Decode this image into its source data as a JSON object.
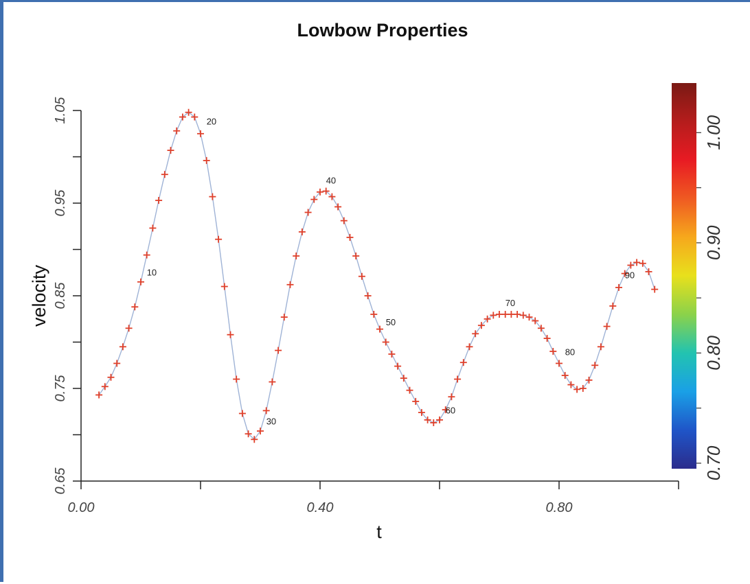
{
  "chart_data": {
    "type": "line",
    "title": "Lowbow Properties",
    "xlabel": "t",
    "ylabel": "velocity",
    "xlim": [
      0.0,
      1.0
    ],
    "ylim": [
      0.65,
      1.05
    ],
    "x_ticks": [
      0.0,
      0.2,
      0.4,
      0.6,
      0.8,
      1.0
    ],
    "x_tick_labels": [
      "0.00",
      "",
      "0.40",
      "",
      "0.80",
      ""
    ],
    "y_ticks": [
      0.65,
      0.7,
      0.75,
      0.8,
      0.85,
      0.9,
      0.95,
      1.0,
      1.05
    ],
    "y_tick_labels": [
      "0.65",
      "",
      "0.75",
      "",
      "0.85",
      "",
      "0.95",
      "",
      "1.05"
    ],
    "grid": false,
    "legend": "none",
    "line_color": "#9fb3d6",
    "marker_color": "#e0402a",
    "colorbar": {
      "range": [
        0.695,
        1.045
      ],
      "ticks": [
        0.7,
        0.75,
        0.8,
        0.85,
        0.9,
        0.95,
        1.0
      ],
      "tick_labels": [
        "0.70",
        "",
        "0.80",
        "",
        "0.90",
        "",
        "1.00"
      ],
      "colors": [
        "#2b2c8c",
        "#1f55c8",
        "#1aa0e6",
        "#22c3b0",
        "#8bd24a",
        "#e8e01c",
        "#f6a81c",
        "#ef5a22",
        "#e81b23",
        "#b51c1c",
        "#7a1a14"
      ]
    },
    "series": [
      {
        "x": [
          0.03,
          0.04,
          0.05,
          0.06,
          0.07,
          0.08,
          0.09,
          0.1,
          0.11,
          0.12,
          0.13,
          0.14,
          0.15,
          0.16,
          0.17,
          0.18,
          0.19,
          0.2,
          0.21,
          0.22,
          0.23,
          0.24,
          0.25,
          0.26,
          0.27,
          0.28,
          0.29,
          0.3,
          0.31,
          0.32,
          0.33,
          0.34,
          0.35,
          0.36,
          0.37,
          0.38,
          0.39,
          0.4,
          0.41,
          0.42,
          0.43,
          0.44,
          0.45,
          0.46,
          0.47,
          0.48,
          0.49,
          0.5,
          0.51,
          0.52,
          0.53,
          0.54,
          0.55,
          0.56,
          0.57,
          0.58,
          0.59,
          0.6,
          0.61,
          0.62,
          0.63,
          0.64,
          0.65,
          0.66,
          0.67,
          0.68,
          0.69,
          0.7,
          0.71,
          0.72,
          0.73,
          0.74,
          0.75,
          0.76,
          0.77,
          0.78,
          0.79,
          0.8,
          0.81,
          0.82,
          0.83,
          0.84,
          0.85,
          0.86,
          0.87,
          0.88,
          0.89,
          0.9,
          0.91,
          0.92,
          0.93,
          0.94,
          0.95,
          0.96
        ],
        "y": [
          0.743,
          0.752,
          0.762,
          0.777,
          0.795,
          0.815,
          0.838,
          0.865,
          0.894,
          0.923,
          0.953,
          0.981,
          1.007,
          1.028,
          1.043,
          1.048,
          1.043,
          1.025,
          0.996,
          0.957,
          0.911,
          0.86,
          0.808,
          0.76,
          0.723,
          0.701,
          0.695,
          0.704,
          0.726,
          0.757,
          0.791,
          0.827,
          0.862,
          0.893,
          0.919,
          0.94,
          0.954,
          0.962,
          0.963,
          0.957,
          0.946,
          0.931,
          0.913,
          0.893,
          0.871,
          0.85,
          0.83,
          0.814,
          0.8,
          0.787,
          0.774,
          0.761,
          0.748,
          0.736,
          0.724,
          0.716,
          0.713,
          0.716,
          0.727,
          0.741,
          0.76,
          0.778,
          0.795,
          0.809,
          0.818,
          0.825,
          0.829,
          0.83,
          0.83,
          0.83,
          0.83,
          0.829,
          0.827,
          0.823,
          0.815,
          0.804,
          0.79,
          0.777,
          0.764,
          0.754,
          0.749,
          0.75,
          0.759,
          0.775,
          0.795,
          0.817,
          0.839,
          0.859,
          0.874,
          0.883,
          0.886,
          0.885,
          0.876,
          0.857
        ],
        "point_labels": [
          {
            "x": 0.11,
            "y": 0.872,
            "text": "10"
          },
          {
            "x": 0.21,
            "y": 1.035,
            "text": "20"
          },
          {
            "x": 0.31,
            "y": 0.711,
            "text": "30"
          },
          {
            "x": 0.41,
            "y": 0.971,
            "text": "40"
          },
          {
            "x": 0.51,
            "y": 0.818,
            "text": "50"
          },
          {
            "x": 0.61,
            "y": 0.723,
            "text": "60"
          },
          {
            "x": 0.71,
            "y": 0.839,
            "text": "70"
          },
          {
            "x": 0.81,
            "y": 0.786,
            "text": "80"
          },
          {
            "x": 0.91,
            "y": 0.869,
            "text": "90"
          }
        ]
      }
    ]
  }
}
